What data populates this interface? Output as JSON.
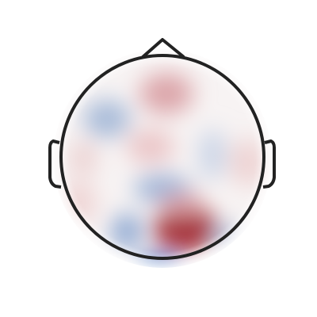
{
  "chart_data": {
    "type": "topomap"
  }
}
